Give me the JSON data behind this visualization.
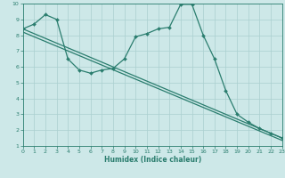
{
  "x_vals": [
    0,
    1,
    2,
    3,
    4,
    5,
    6,
    7,
    8,
    9,
    10,
    11,
    12,
    13,
    14,
    15,
    16,
    17,
    18,
    19,
    20,
    21,
    22,
    23
  ],
  "curve_y": [
    8.4,
    8.7,
    9.3,
    9.0,
    6.5,
    5.8,
    5.6,
    5.8,
    5.9,
    6.5,
    7.9,
    8.1,
    8.4,
    8.5,
    9.95,
    9.95,
    8.0,
    6.5,
    4.5,
    3.0,
    2.5,
    2.1,
    1.8,
    1.5
  ],
  "line1_x": [
    0,
    23
  ],
  "line1_y": [
    8.4,
    1.5
  ],
  "line2_x": [
    0,
    23
  ],
  "line2_y": [
    8.2,
    1.35
  ],
  "line_color": "#2a7d6e",
  "bg_color": "#cde8e8",
  "grid_color": "#aacfcf",
  "xlabel": "Humidex (Indice chaleur)",
  "ylim": [
    1,
    10
  ],
  "xlim": [
    0,
    23
  ],
  "yticks": [
    1,
    2,
    3,
    4,
    5,
    6,
    7,
    8,
    9,
    10
  ],
  "xticks": [
    0,
    1,
    2,
    3,
    4,
    5,
    6,
    7,
    8,
    9,
    10,
    11,
    12,
    13,
    14,
    15,
    16,
    17,
    18,
    19,
    20,
    21,
    22,
    23
  ]
}
